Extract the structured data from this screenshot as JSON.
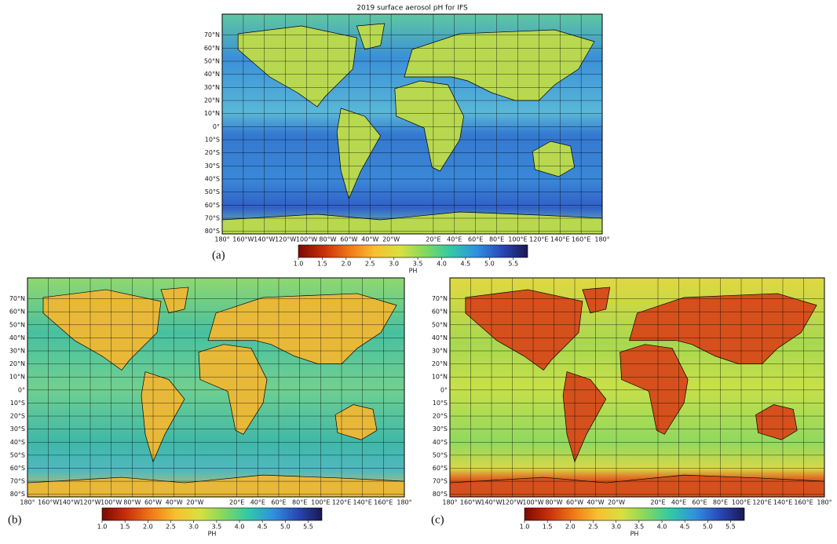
{
  "title": "2019 surface aerosol pH for IFS",
  "panels": [
    {
      "label": "(a)"
    },
    {
      "label": "(b)"
    },
    {
      "label": "(c)"
    }
  ],
  "lat_range": [
    -82,
    86
  ],
  "lon_range": [
    -180,
    180
  ],
  "lat_ticks": [
    {
      "value": 70,
      "label": "70°N"
    },
    {
      "value": 60,
      "label": "60°N"
    },
    {
      "value": 50,
      "label": "50°N"
    },
    {
      "value": 40,
      "label": "40°N"
    },
    {
      "value": 30,
      "label": "30°N"
    },
    {
      "value": 20,
      "label": "20°N"
    },
    {
      "value": 10,
      "label": "10°N"
    },
    {
      "value": 0,
      "label": "0°"
    },
    {
      "value": -10,
      "label": "10°S"
    },
    {
      "value": -20,
      "label": "20°S"
    },
    {
      "value": -30,
      "label": "30°S"
    },
    {
      "value": -40,
      "label": "40°S"
    },
    {
      "value": -50,
      "label": "50°S"
    },
    {
      "value": -60,
      "label": "60°S"
    },
    {
      "value": -70,
      "label": "70°S"
    },
    {
      "value": -80,
      "label": "80°S"
    }
  ],
  "lon_ticks": [
    {
      "value": -180,
      "label": "180°"
    },
    {
      "value": -160,
      "label": "160°W"
    },
    {
      "value": -140,
      "label": "140°W"
    },
    {
      "value": -120,
      "label": "120°W"
    },
    {
      "value": -100,
      "label": "100°W"
    },
    {
      "value": -80,
      "label": "80°W"
    },
    {
      "value": -60,
      "label": "60°W"
    },
    {
      "value": -40,
      "label": "40°W"
    },
    {
      "value": -20,
      "label": "20°W"
    },
    {
      "value": 20,
      "label": "20°E"
    },
    {
      "value": 40,
      "label": "40°E"
    },
    {
      "value": 60,
      "label": "60°E"
    },
    {
      "value": 80,
      "label": "80°E"
    },
    {
      "value": 100,
      "label": "100°E"
    },
    {
      "value": 120,
      "label": "120°E"
    },
    {
      "value": 140,
      "label": "140°E"
    },
    {
      "value": 160,
      "label": "160°E"
    },
    {
      "value": 180,
      "label": "180°"
    }
  ],
  "colorbar": {
    "label": "PH",
    "range": [
      1,
      5.8
    ],
    "colors": [
      "#7a0a00",
      "#c8300a",
      "#f07818",
      "#f8c030",
      "#d8e040",
      "#80d860",
      "#30c8a8",
      "#3090e0",
      "#2848b8",
      "#1a1850"
    ],
    "ticks": [
      {
        "value": 1,
        "label": "1.0"
      },
      1.5,
      {
        "value": 2,
        "label": "2.0"
      },
      2.5,
      {
        "value": 3,
        "label": "3.0"
      },
      3.5,
      {
        "value": 4,
        "label": "4.0"
      },
      4.5,
      {
        "value": 5,
        "label": "5.0"
      },
      5.5
    ]
  }
}
